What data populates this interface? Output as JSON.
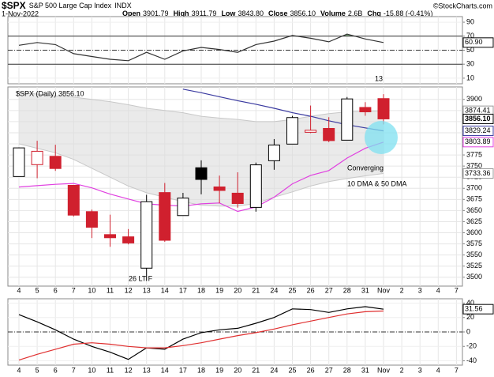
{
  "header": {
    "symbol": "$SPX",
    "name": "S&P 500 Large Cap Index",
    "exchange": "INDX",
    "date": "1-Nov-2022",
    "copyright": "©StockCharts.com",
    "quote": [
      {
        "label": "Open",
        "value": "3901.79"
      },
      {
        "label": "High",
        "value": "3911.79"
      },
      {
        "label": "Low",
        "value": "3843.80"
      },
      {
        "label": "Close",
        "value": "3856.10"
      },
      {
        "label": "Volume",
        "value": "2.6B"
      },
      {
        "label": "Chg",
        "value": "-15.88 (-0.41%)"
      }
    ]
  },
  "chart_data": [
    {
      "type": "line",
      "ylim": [
        2,
        98
      ],
      "yticks": [
        90,
        70,
        50,
        30,
        10
      ],
      "overbought": 70,
      "midline": 50,
      "oversold": 30,
      "fill_color": "#7fa87f",
      "series": [
        {
          "color": "#333333",
          "values": [
            57,
            61,
            58,
            45,
            41,
            37,
            35,
            47,
            37,
            49,
            54,
            51,
            47,
            58,
            63,
            71,
            67,
            62,
            73,
            66,
            60.9,
            null,
            null,
            null,
            null
          ]
        }
      ],
      "last_label": {
        "value": 60.9,
        "label": "60.90"
      }
    },
    {
      "type": "candlestick",
      "legend": "$SPX (Daily) 3856.10",
      "categories": [
        "4",
        "5",
        "6",
        "7",
        "10",
        "11",
        "12",
        "13",
        "14",
        "17",
        "18",
        "19",
        "20",
        "21",
        "24",
        "25",
        "26",
        "27",
        "28",
        "31",
        "Nov",
        "2",
        "3",
        "4",
        "7"
      ],
      "open": [
        3726.46,
        3753.25,
        3771.97,
        3706.74,
        3647.51,
        3595.86,
        3590.83,
        3520.37,
        3690.41,
        3638.65,
        3746.26,
        3703.11,
        3689.05,
        3657.1,
        3762.01,
        3799.44,
        3825.97,
        3834.69,
        3808.26,
        3881.85,
        3901.79,
        null,
        null,
        null,
        null
      ],
      "high": [
        3791.92,
        3806.91,
        3797.93,
        3706.74,
        3652.17,
        3640.66,
        3608.34,
        3685.41,
        3712.0,
        3689.73,
        3762.79,
        3728.58,
        3736.0,
        3757.89,
        3810.74,
        3862.85,
        3886.15,
        3859.95,
        3905.42,
        3893.73,
        3911.79,
        null,
        null,
        null,
        null
      ],
      "low": [
        3726.46,
        3722.66,
        3739.22,
        3636.66,
        3588.1,
        3568.45,
        3573.86,
        3491.58,
        3579.68,
        3638.65,
        3686.53,
        3666.51,
        3656.44,
        3647.42,
        3741.65,
        3799.44,
        3824.07,
        3803.79,
        3808.26,
        3863.18,
        3843.8,
        null,
        null,
        null,
        null
      ],
      "close": [
        3790.93,
        3783.28,
        3744.52,
        3639.66,
        3612.39,
        3588.84,
        3577.03,
        3669.91,
        3583.07,
        3677.95,
        3719.98,
        3695.16,
        3665.78,
        3752.75,
        3797.34,
        3859.11,
        3830.6,
        3807.3,
        3901.06,
        3871.98,
        3856.1,
        null,
        null,
        null,
        null
      ],
      "up_color": "#000000",
      "down_color": "#d0202e",
      "bands": {
        "color": "#dcdcdc",
        "upper": [
          3915,
          3912,
          3908,
          3905,
          3900,
          3895,
          3888,
          3880,
          3875,
          3870,
          3862,
          3858,
          3855,
          3850,
          3850,
          3855,
          3862,
          3868,
          3872,
          3873,
          3874.41,
          null,
          null,
          null,
          null
        ],
        "lower": [
          3800,
          3790,
          3780,
          3765,
          3745,
          3725,
          3705,
          3690,
          3680,
          3670,
          3662,
          3660,
          3660,
          3666,
          3680,
          3692,
          3705,
          3715,
          3722,
          3728,
          3733.36,
          null,
          null,
          null,
          null
        ]
      },
      "series": [
        {
          "color": "#3a3aa0",
          "values": [
            null,
            null,
            null,
            null,
            null,
            null,
            null,
            null,
            null,
            3923,
            3915,
            3906,
            3897,
            3889,
            3880,
            3870,
            3862,
            3852,
            3843,
            3836,
            3829.24,
            null,
            null,
            null,
            null
          ]
        },
        {
          "color": "#e040e0",
          "values": [
            3703,
            3706,
            3709,
            3711,
            3701,
            3687,
            3676,
            3665,
            3662,
            3660,
            3665,
            3667,
            3648,
            3658,
            3680,
            3710,
            3729,
            3740,
            3768,
            3790,
            3803.89,
            null,
            null,
            null,
            null
          ]
        }
      ],
      "ylim": [
        3480,
        3928
      ],
      "yticks": [
        3900,
        3875,
        3850,
        3825,
        3800,
        3775,
        3750,
        3725,
        3700,
        3675,
        3650,
        3625,
        3600,
        3575,
        3550,
        3525,
        3500
      ],
      "price_labels": [
        {
          "value": 3874.41,
          "label": "3874.41",
          "color": "#999999"
        },
        {
          "value": 3856.1,
          "label": "3856.10",
          "color": "#000000"
        },
        {
          "value": 3829.24,
          "label": "3829.24",
          "color": "#3a3aa0"
        },
        {
          "value": 3803.89,
          "label": "3803.89",
          "color": "#e040e0"
        },
        {
          "value": 3733.36,
          "label": "3733.36",
          "color": "#999999"
        }
      ],
      "annotations": [
        {
          "text": "13",
          "color": "#2a3fd0"
        },
        {
          "text": "26 LT F",
          "color": "#2a3fd0"
        },
        {
          "text": "Converging",
          "color": "#000000"
        },
        {
          "text": "10 DMA & 50 DMA",
          "color": "#000000"
        }
      ]
    },
    {
      "type": "line",
      "ylim": [
        -46,
        46
      ],
      "yticks": [
        40,
        20,
        0,
        -20,
        -40
      ],
      "midline": 0,
      "series": [
        {
          "color": "#000000",
          "values": [
            24,
            14,
            3,
            -10,
            -20,
            -28,
            -38,
            -22,
            -24,
            -10,
            -1,
            3,
            5,
            12,
            20,
            32,
            31,
            27,
            32,
            35,
            31.56,
            null,
            null,
            null,
            null
          ]
        },
        {
          "color": "#e03030",
          "values": [
            -39,
            -31,
            -24,
            -17,
            -15,
            -17,
            -20,
            -22,
            -22,
            -19,
            -15,
            -10,
            -5,
            -1,
            4,
            10,
            15,
            20,
            25,
            28,
            29,
            null,
            null,
            null,
            null
          ]
        }
      ],
      "last_label": {
        "value": 31.56,
        "label": "31.56"
      }
    }
  ]
}
